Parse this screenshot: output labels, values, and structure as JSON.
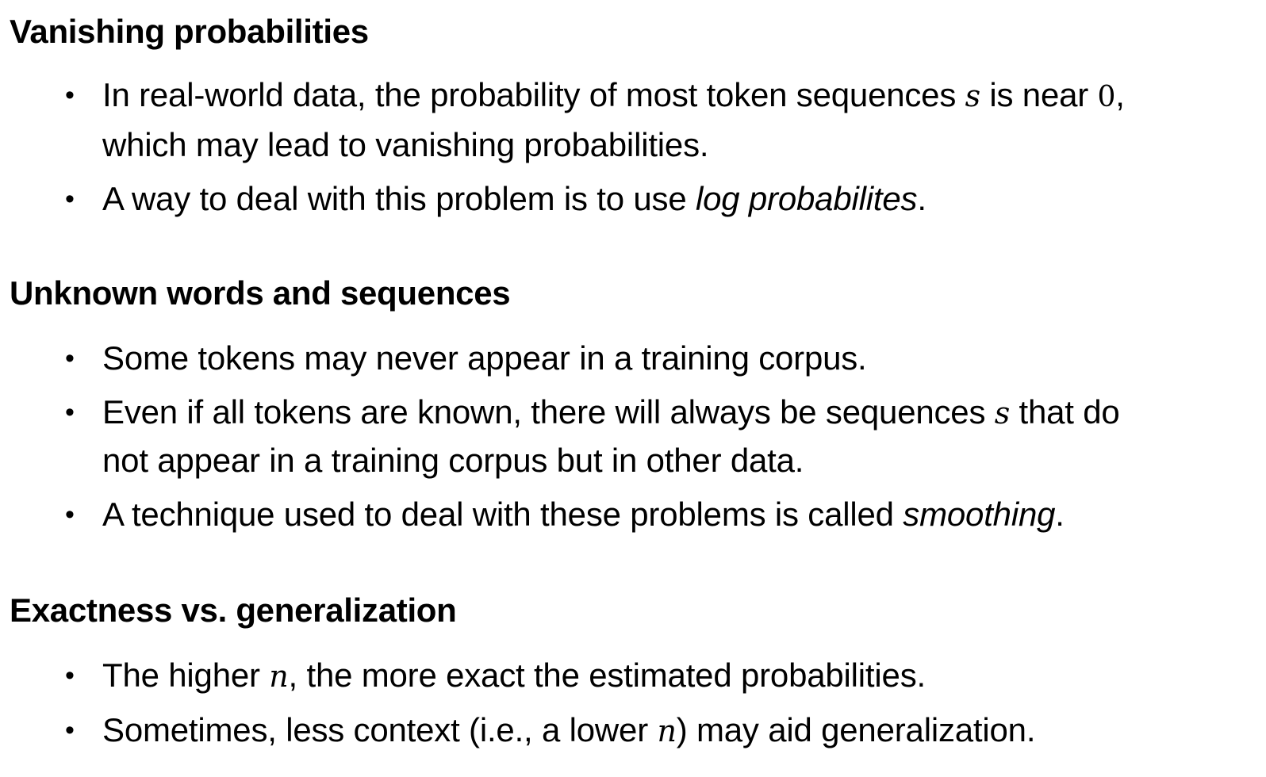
{
  "sections": [
    {
      "heading": "Vanishing probabilities",
      "items": [
        {
          "line1_a": "In real-world data, the probability of most token sequences ",
          "line1_math1": "s",
          "line1_b": " is near ",
          "line1_math2": "0",
          "line1_c": ",",
          "line2": "which may lead to vanishing probabilities."
        },
        {
          "text_a": "A way to deal with this problem is to use ",
          "emph": "log probabilites",
          "text_b": "."
        }
      ]
    },
    {
      "heading": "Unknown words and sequences",
      "items": [
        {
          "text": "Some tokens may never appear in a training corpus."
        },
        {
          "line1_a": "Even if all tokens are known, there will always be sequences ",
          "line1_math": "s",
          "line1_b": " that do",
          "line2": "not appear in a training corpus but in other data."
        },
        {
          "text_a": "A technique used to deal with these problems is called ",
          "emph": "smoothing",
          "text_b": "."
        }
      ]
    },
    {
      "heading": "Exactness vs. generalization",
      "items": [
        {
          "text_a": "The higher ",
          "math": "n",
          "text_b": ", the more exact the estimated probabilities."
        },
        {
          "text_a": "Sometimes, less context (i.e., a lower ",
          "math": "n",
          "text_b": ") may aid generalization."
        }
      ]
    }
  ],
  "bullet_glyph": "•"
}
